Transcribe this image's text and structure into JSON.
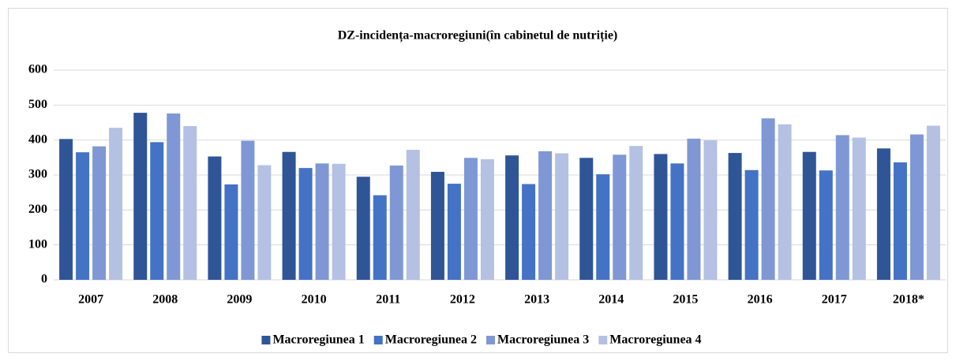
{
  "chart_data": {
    "type": "bar",
    "title": "DZ-incidența-macroregiuni(în cabinetul de nutriție)",
    "categories": [
      "2007",
      "2008",
      "2009",
      "2010",
      "2011",
      "2012",
      "2013",
      "2014",
      "2015",
      "2016",
      "2017",
      "2018*"
    ],
    "series": [
      {
        "name": "Macroregiunea 1",
        "color": "#2f5597",
        "values": [
          403,
          478,
          353,
          366,
          295,
          309,
          356,
          349,
          360,
          363,
          366,
          376
        ]
      },
      {
        "name": "Macroregiunea 2",
        "color": "#4472c4",
        "values": [
          365,
          394,
          273,
          320,
          242,
          275,
          274,
          302,
          333,
          314,
          313,
          336
        ]
      },
      {
        "name": "Macroregiunea 3",
        "color": "#7f97d4",
        "values": [
          382,
          476,
          398,
          333,
          327,
          349,
          368,
          358,
          404,
          462,
          414,
          416
        ]
      },
      {
        "name": "Macroregiunea 4",
        "color": "#b4c1e3",
        "values": [
          435,
          440,
          328,
          332,
          372,
          345,
          362,
          383,
          399,
          445,
          407,
          441
        ]
      }
    ],
    "ylim": [
      0,
      600
    ],
    "yticks": [
      0,
      100,
      200,
      300,
      400,
      500,
      600
    ],
    "grid": true,
    "legend": "bottom"
  }
}
